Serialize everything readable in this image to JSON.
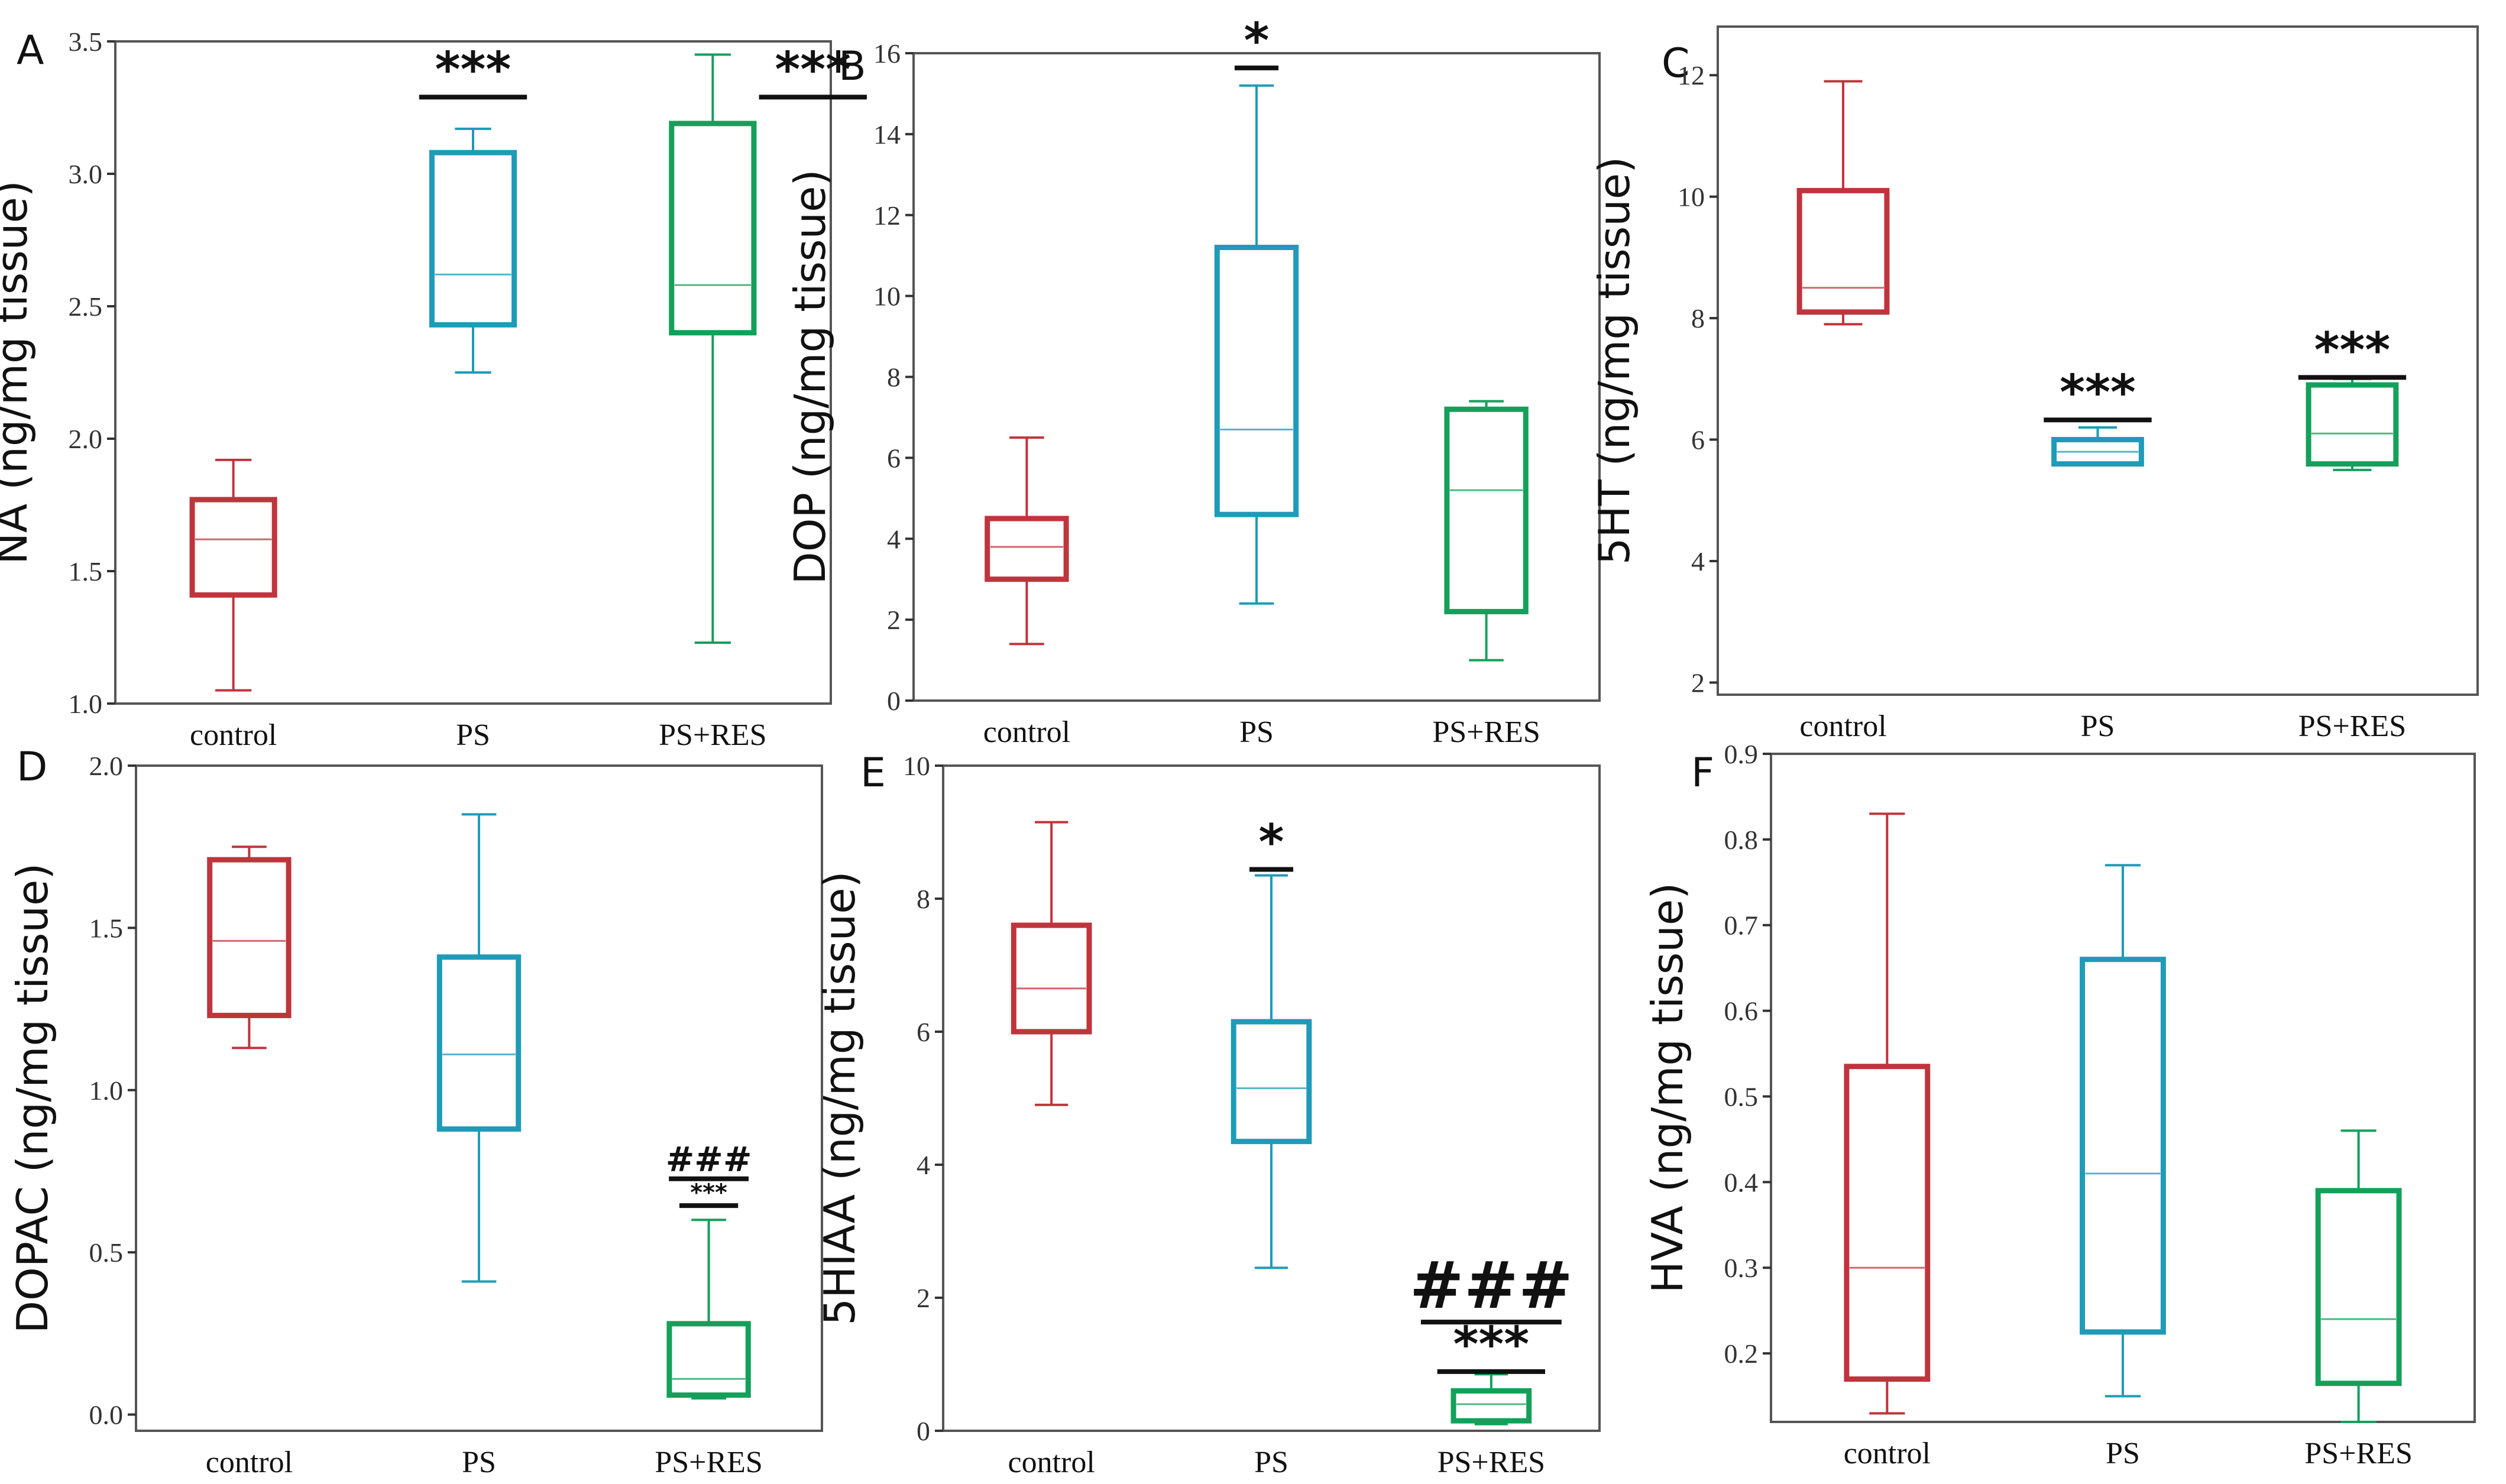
{
  "colors": {
    "control": "#c0343d",
    "PS": "#1f9bb8",
    "PS+RES": "#14a05a"
  },
  "chart_data": [
    {
      "panel": "A",
      "type": "box",
      "ylabel": "NA (ng/mg tissue)",
      "ylim": [
        1.0,
        3.5
      ],
      "yticks": [
        "1.0",
        "1.5",
        "2.0",
        "2.5",
        "3.0",
        "3.5"
      ],
      "categories": [
        "control",
        "PS",
        "PS+RES"
      ],
      "boxes": [
        {
          "group": "control",
          "min": 1.05,
          "q1": 1.41,
          "median": 1.62,
          "q3": 1.77,
          "max": 1.92
        },
        {
          "group": "PS",
          "min": 2.25,
          "q1": 2.43,
          "median": 2.62,
          "q3": 3.08,
          "max": 3.17
        },
        {
          "group": "PS+RES",
          "min": 1.23,
          "q1": 2.4,
          "median": 2.58,
          "q3": 3.19,
          "max": 3.45
        }
      ],
      "annotations": [
        {
          "group": "PS",
          "text": "***",
          "y": 3.33,
          "underline": true,
          "size": 82
        },
        {
          "group": "PS+RES",
          "text": "***",
          "y": 3.33,
          "underline": true,
          "size": 82,
          "offset": 0.55
        }
      ]
    },
    {
      "panel": "B",
      "type": "box",
      "ylabel": "DOP (ng/mg tissue)",
      "ylim": [
        0,
        16
      ],
      "yticks": [
        "0",
        "2",
        "4",
        "6",
        "8",
        "10",
        "12",
        "14",
        "16"
      ],
      "categories": [
        "control",
        "PS",
        "PS+RES"
      ],
      "boxes": [
        {
          "group": "control",
          "min": 1.4,
          "q1": 3.0,
          "median": 3.8,
          "q3": 4.5,
          "max": 6.5
        },
        {
          "group": "PS",
          "min": 2.4,
          "q1": 4.6,
          "median": 6.7,
          "q3": 11.2,
          "max": 15.2
        },
        {
          "group": "PS+RES",
          "min": 1.0,
          "q1": 2.2,
          "median": 5.2,
          "q3": 7.2,
          "max": 7.4
        }
      ],
      "annotations": [
        {
          "group": "PS",
          "text": "*",
          "y": 15.9,
          "underline": true,
          "size": 82
        }
      ]
    },
    {
      "panel": "C",
      "type": "box",
      "ylabel": "5HT (ng/mg tissue)",
      "ylim": [
        1.8,
        12.8
      ],
      "yticks": [
        "2",
        "4",
        "6",
        "8",
        "10",
        "12"
      ],
      "categories": [
        "control",
        "PS",
        "PS+RES"
      ],
      "boxes": [
        {
          "group": "control",
          "min": 7.9,
          "q1": 8.1,
          "median": 8.5,
          "q3": 10.1,
          "max": 11.9
        },
        {
          "group": "PS",
          "min": 5.6,
          "q1": 5.6,
          "median": 5.8,
          "q3": 6.0,
          "max": 6.2
        },
        {
          "group": "PS+RES",
          "min": 5.5,
          "q1": 5.6,
          "median": 6.1,
          "q3": 6.9,
          "max": 7.0
        }
      ],
      "annotations": [
        {
          "group": "PS",
          "text": "***",
          "y": 6.5,
          "underline": true,
          "size": 82
        },
        {
          "group": "PS+RES",
          "text": "***",
          "y": 7.2,
          "underline": true,
          "size": 82
        }
      ]
    },
    {
      "panel": "D",
      "type": "box",
      "ylabel": "DOPAC (ng/mg tissue)",
      "ylim": [
        -0.05,
        2.0
      ],
      "yticks": [
        "0.0",
        "0.5",
        "1.0",
        "1.5",
        "2.0"
      ],
      "categories": [
        "control",
        "PS",
        "PS+RES"
      ],
      "boxes": [
        {
          "group": "control",
          "min": 1.13,
          "q1": 1.23,
          "median": 1.46,
          "q3": 1.71,
          "max": 1.75
        },
        {
          "group": "PS",
          "min": 0.41,
          "q1": 0.88,
          "median": 1.11,
          "q3": 1.41,
          "max": 1.85
        },
        {
          "group": "PS+RES",
          "min": 0.05,
          "q1": 0.06,
          "median": 0.11,
          "q3": 0.28,
          "max": 0.6
        }
      ],
      "annotations": [
        {
          "group": "PS+RES",
          "text": "###",
          "y": 0.75,
          "underline": true,
          "size": 58
        },
        {
          "group": "PS+RES",
          "text": "***",
          "y": 0.66,
          "underline": true,
          "size": 40
        }
      ]
    },
    {
      "panel": "E",
      "type": "box",
      "ylabel": "5HIAA (ng/mg tissue)",
      "ylim": [
        0,
        10
      ],
      "yticks": [
        "0",
        "2",
        "4",
        "6",
        "8",
        "10"
      ],
      "categories": [
        "control",
        "PS",
        "PS+RES"
      ],
      "boxes": [
        {
          "group": "control",
          "min": 4.9,
          "q1": 6.0,
          "median": 6.65,
          "q3": 7.6,
          "max": 9.15
        },
        {
          "group": "PS",
          "min": 2.45,
          "q1": 4.35,
          "median": 5.15,
          "q3": 6.15,
          "max": 8.35
        },
        {
          "group": "PS+RES",
          "min": 0.1,
          "q1": 0.15,
          "median": 0.4,
          "q3": 0.6,
          "max": 0.85
        }
      ],
      "annotations": [
        {
          "group": "PS",
          "text": "*",
          "y": 8.6,
          "underline": true,
          "size": 82
        },
        {
          "group": "PS+RES",
          "text": "###",
          "y": 1.85,
          "underline": true,
          "size": 110
        },
        {
          "group": "PS+RES",
          "text": "***",
          "y": 1.05,
          "underline": true,
          "size": 82
        }
      ]
    },
    {
      "panel": "F",
      "type": "box",
      "ylabel": "HVA (ng/mg tissue)",
      "ylim": [
        0.12,
        0.9
      ],
      "yticks": [
        "0.2",
        "0.3",
        "0.4",
        "0.5",
        "0.6",
        "0.7",
        "0.8",
        "0.9"
      ],
      "categories": [
        "control",
        "PS",
        "PS+RES"
      ],
      "boxes": [
        {
          "group": "control",
          "min": 0.13,
          "q1": 0.17,
          "median": 0.3,
          "q3": 0.535,
          "max": 0.83
        },
        {
          "group": "PS",
          "min": 0.15,
          "q1": 0.225,
          "median": 0.41,
          "q3": 0.66,
          "max": 0.77
        },
        {
          "group": "PS+RES",
          "min": 0.12,
          "q1": 0.165,
          "median": 0.24,
          "q3": 0.39,
          "max": 0.46
        }
      ],
      "annotations": []
    }
  ]
}
